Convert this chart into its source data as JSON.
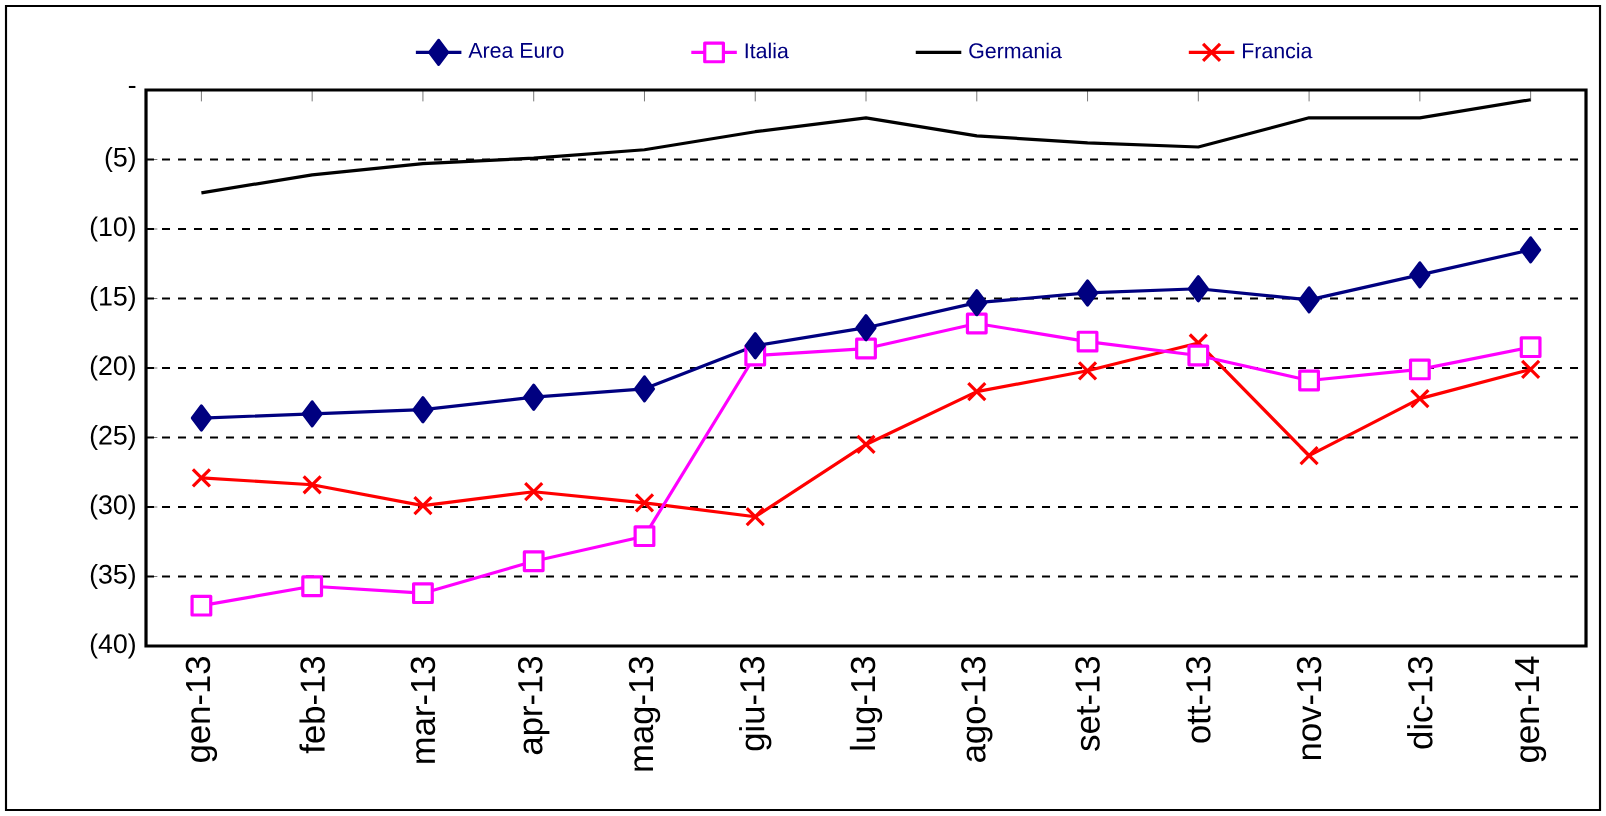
{
  "chart_data": {
    "type": "line",
    "categories": [
      "gen-13",
      "feb-13",
      "mar-13",
      "apr-13",
      "mag-13",
      "giu-13",
      "lug-13",
      "ago-13",
      "set-13",
      "ott-13",
      "nov-13",
      "dic-13",
      "gen-14"
    ],
    "series": [
      {
        "name": "Area Euro",
        "color": "#000080",
        "marker": "diamond",
        "values": [
          -23.6,
          -23.3,
          -23.0,
          -22.1,
          -21.5,
          -18.4,
          -17.1,
          -15.3,
          -14.6,
          -14.3,
          -15.1,
          -13.3,
          -11.5
        ]
      },
      {
        "name": "Italia",
        "color": "#ff00ff",
        "marker": "square",
        "values": [
          -37.1,
          -35.7,
          -36.2,
          -33.9,
          -32.1,
          -19.1,
          -18.6,
          -16.8,
          -18.1,
          -19.1,
          -20.9,
          -20.1,
          -18.5
        ]
      },
      {
        "name": "Germania",
        "color": "#000000",
        "marker": "none",
        "values": [
          -7.4,
          -6.1,
          -5.3,
          -4.9,
          -4.3,
          -3.0,
          -2.0,
          -3.3,
          -3.8,
          -4.1,
          -2.0,
          -2.0,
          -0.7
        ]
      },
      {
        "name": "Francia",
        "color": "#ff0000",
        "marker": "cross",
        "values": [
          -27.9,
          -28.4,
          -29.9,
          -28.9,
          -29.7,
          -30.7,
          -25.5,
          -21.7,
          -20.2,
          -18.2,
          -26.3,
          -22.2,
          -20.1
        ]
      }
    ],
    "ylim": [
      -40,
      0
    ],
    "yticks": [
      {
        "value": 0,
        "label": "-"
      },
      {
        "value": -5,
        "label": "(5)"
      },
      {
        "value": -10,
        "label": "(10)"
      },
      {
        "value": -15,
        "label": "(15)"
      },
      {
        "value": -20,
        "label": "(20)"
      },
      {
        "value": -25,
        "label": "(25)"
      },
      {
        "value": -30,
        "label": "(30)"
      },
      {
        "value": -35,
        "label": "(35)"
      },
      {
        "value": -40,
        "label": "(40)"
      }
    ],
    "grid": "y",
    "legend": "top",
    "line_style": "solid"
  }
}
